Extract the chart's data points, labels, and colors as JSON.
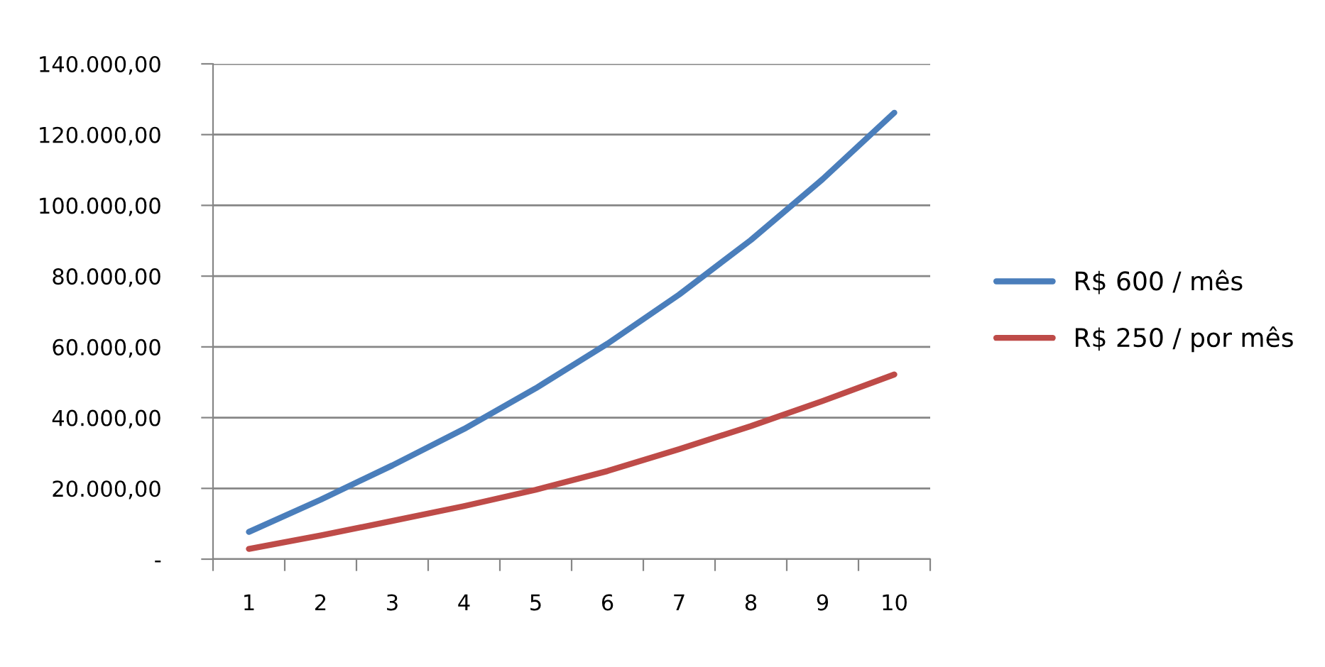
{
  "chart_data": {
    "type": "line",
    "categories": [
      "1",
      "2",
      "3",
      "4",
      "5",
      "6",
      "7",
      "8",
      "9",
      "10"
    ],
    "series": [
      {
        "name": "R$ 600 / mês",
        "color": "#4a7ebb",
        "values": [
          7700,
          16800,
          26500,
          36800,
          48300,
          60900,
          74800,
          90200,
          107400,
          126200
        ]
      },
      {
        "name": "R$ 250 / por mês",
        "color": "#be4b48",
        "values": [
          2900,
          6700,
          10800,
          15000,
          19600,
          24900,
          31100,
          37600,
          44700,
          52200
        ]
      }
    ],
    "ylim": [
      0,
      140000
    ],
    "yticks": [
      {
        "value": 0,
        "label": "-"
      },
      {
        "value": 20000,
        "label": "20.000,00"
      },
      {
        "value": 40000,
        "label": "40.000,00"
      },
      {
        "value": 60000,
        "label": "60.000,00"
      },
      {
        "value": 80000,
        "label": "80.000,00"
      },
      {
        "value": 100000,
        "label": "100.000,00"
      },
      {
        "value": 120000,
        "label": "120.000,00"
      },
      {
        "value": 140000,
        "label": "140.000,00"
      }
    ],
    "grid": "y",
    "legend": "right",
    "marker": "none",
    "line_style": "solid"
  }
}
